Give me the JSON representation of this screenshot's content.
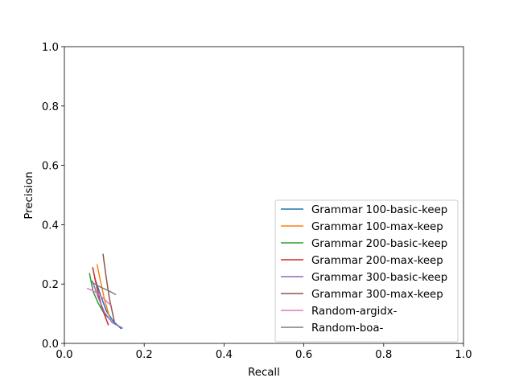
{
  "chart_data": {
    "type": "line",
    "title": "",
    "xlabel": "Recall",
    "ylabel": "Precision",
    "xlim": [
      0.0,
      1.0
    ],
    "ylim": [
      0.0,
      1.0
    ],
    "xticks": [
      "0.0",
      "0.2",
      "0.4",
      "0.6",
      "0.8",
      "1.0"
    ],
    "yticks": [
      "0.0",
      "0.2",
      "0.4",
      "0.6",
      "0.8",
      "1.0"
    ],
    "grid": false,
    "legend_position": "lower-right",
    "series": [
      {
        "name": "Grammar 100-basic-keep",
        "color": "#1f77b4",
        "x": [
          0.076,
          0.09,
          0.105,
          0.122,
          0.142
        ],
        "y": [
          0.22,
          0.165,
          0.11,
          0.075,
          0.05
        ]
      },
      {
        "name": "Grammar 100-max-keep",
        "color": "#ff7f0e",
        "x": [
          0.082,
          0.092,
          0.102,
          0.112
        ],
        "y": [
          0.265,
          0.2,
          0.14,
          0.095
        ]
      },
      {
        "name": "Grammar 200-basic-keep",
        "color": "#2ca02c",
        "x": [
          0.063,
          0.072,
          0.085,
          0.1,
          0.115
        ],
        "y": [
          0.235,
          0.175,
          0.135,
          0.1,
          0.08
        ]
      },
      {
        "name": "Grammar 200-max-keep",
        "color": "#d62728",
        "x": [
          0.071,
          0.082,
          0.094,
          0.11
        ],
        "y": [
          0.255,
          0.185,
          0.12,
          0.063
        ]
      },
      {
        "name": "Grammar 300-basic-keep",
        "color": "#9467bd",
        "x": [
          0.07,
          0.085,
          0.1,
          0.12,
          0.145
        ],
        "y": [
          0.21,
          0.155,
          0.105,
          0.07,
          0.052
        ]
      },
      {
        "name": "Grammar 300-max-keep",
        "color": "#8c564b",
        "x": [
          0.097,
          0.105,
          0.113,
          0.125
        ],
        "y": [
          0.3,
          0.22,
          0.15,
          0.075
        ]
      },
      {
        "name": "Random-argidx-",
        "color": "#e377c2",
        "x": [
          0.058,
          0.075,
          0.095,
          0.115
        ],
        "y": [
          0.185,
          0.175,
          0.155,
          0.13
        ]
      },
      {
        "name": "Random-boa-",
        "color": "#7f7f7f",
        "x": [
          0.07,
          0.09,
          0.11,
          0.128
        ],
        "y": [
          0.205,
          0.19,
          0.178,
          0.165
        ]
      }
    ]
  }
}
